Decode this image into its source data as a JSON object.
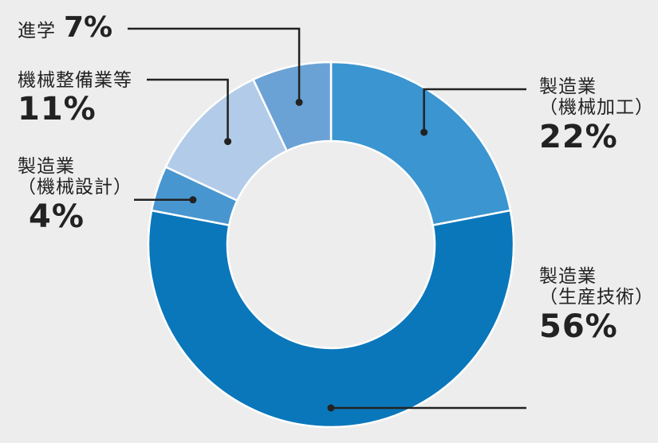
{
  "chart_data": {
    "type": "pie",
    "donut": true,
    "legend": "none",
    "categories": [
      "製造業（機械加工）",
      "製造業（生産技術）",
      "製造業（機械設計）",
      "機械整備業等",
      "進学"
    ],
    "values": [
      22,
      56,
      4,
      11,
      7
    ],
    "colors": [
      "#3a95d0",
      "#0a77bb",
      "#4896cf",
      "#b2cbe8",
      "#6ba2d5"
    ],
    "slices": [
      {
        "name_lines": [
          "製造業",
          "（機械加工）"
        ],
        "value_label": "22%"
      },
      {
        "name_lines": [
          "製造業",
          "（生産技術）"
        ],
        "value_label": "56%"
      },
      {
        "name_lines": [
          "製造業",
          "（機械設計）"
        ],
        "value_label": "4%"
      },
      {
        "name_lines": [
          "機械整備業等"
        ],
        "value_label": "11%"
      },
      {
        "name_lines": [
          "進学"
        ],
        "value_label": "7%"
      }
    ]
  }
}
